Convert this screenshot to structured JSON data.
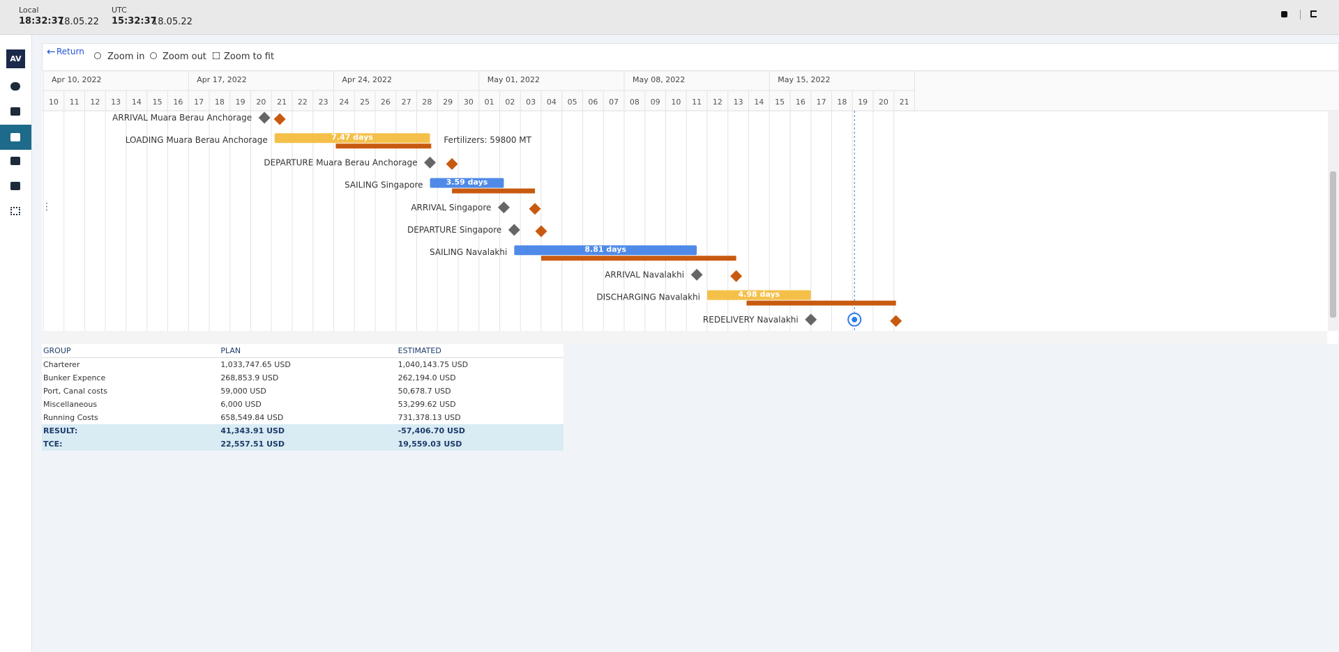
{
  "header": {
    "local_label": "Local",
    "local_time": "18:32:37",
    "local_date": "18.05.22",
    "utc_label": "UTC",
    "utc_time": "15:32:37",
    "utc_date": "18.05.22"
  },
  "sidebar": {
    "logo": "AV"
  },
  "toolbar": {
    "return": "Return",
    "zoom_in": "Zoom in",
    "zoom_out": "Zoom out",
    "zoom_fit": "Zoom to fit"
  },
  "gantt": {
    "weeks": [
      "Apr 10, 2022",
      "Apr 17, 2022",
      "Apr 24, 2022",
      "May 01, 2022",
      "May 08, 2022",
      "May 15, 2022"
    ],
    "days": [
      "10",
      "11",
      "12",
      "13",
      "14",
      "15",
      "16",
      "17",
      "18",
      "19",
      "20",
      "21",
      "22",
      "23",
      "24",
      "25",
      "26",
      "27",
      "28",
      "29",
      "30",
      "01",
      "02",
      "03",
      "04",
      "05",
      "06",
      "07",
      "08",
      "09",
      "10",
      "11",
      "12",
      "13",
      "14",
      "15",
      "16",
      "17",
      "18",
      "19",
      "20",
      "21"
    ],
    "tasks": [
      {
        "label": "ARRIVAL Muara Berau Anchorage"
      },
      {
        "label": "LOADING Muara Berau Anchorage",
        "duration": "7.47 days",
        "note": "Fertilizers: 59800 MT"
      },
      {
        "label": "DEPARTURE Muara Berau Anchorage"
      },
      {
        "label": "SAILING Singapore",
        "duration": "3.59 days"
      },
      {
        "label": "ARRIVAL Singapore"
      },
      {
        "label": "DEPARTURE Singapore"
      },
      {
        "label": "SAILING Navalakhi",
        "duration": "8.81 days"
      },
      {
        "label": "ARRIVAL Navalakhi"
      },
      {
        "label": "DISCHARGING Navalakhi",
        "duration": "4.98 days"
      },
      {
        "label": "REDELIVERY Navalakhi"
      }
    ]
  },
  "table": {
    "columns": [
      "GROUP",
      "PLAN",
      "ESTIMATED"
    ],
    "rows": [
      [
        "Charterer",
        "1,033,747.65 USD",
        "1,040,143.75 USD"
      ],
      [
        "Bunker Expence",
        "268,853.9 USD",
        "262,194.0 USD"
      ],
      [
        "Port, Canal costs",
        "59,000 USD",
        "50,678.7 USD"
      ],
      [
        "Miscellaneous",
        "6,000 USD",
        "53,299.62 USD"
      ],
      [
        "Running Costs",
        "658,549.84 USD",
        "731,378.13 USD"
      ],
      [
        "RESULT:",
        "41,343.91 USD",
        "-57,406.70 USD"
      ],
      [
        "TCE:",
        "22,557.51 USD",
        "19,559.03 USD"
      ]
    ]
  }
}
